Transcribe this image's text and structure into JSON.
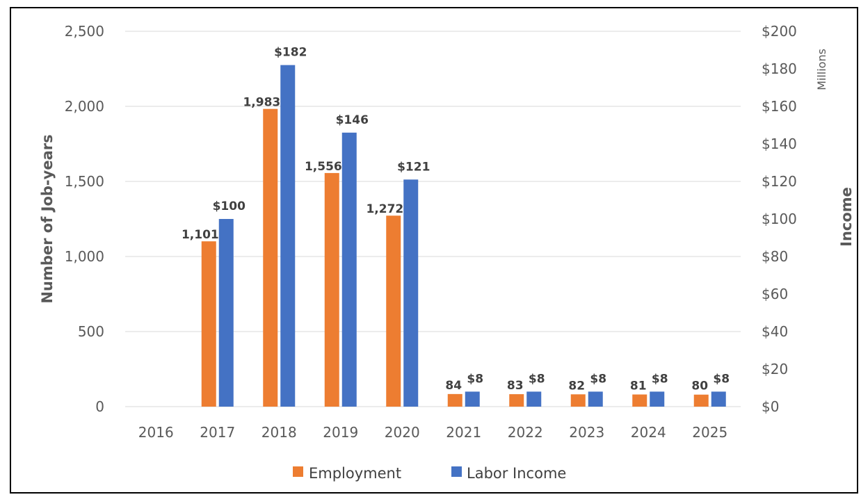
{
  "chart_data": {
    "type": "bar",
    "title": "",
    "xlabel": "",
    "ylabel": "Number of Job-years",
    "y2label": "Income",
    "y2unit": "Millions",
    "categories": [
      "2016",
      "2017",
      "2018",
      "2019",
      "2020",
      "2021",
      "2022",
      "2023",
      "2024",
      "2025"
    ],
    "ylim": [
      0,
      2500
    ],
    "y2lim": [
      0,
      200
    ],
    "yticks": [
      "0",
      "500",
      "1,000",
      "1,500",
      "2,000",
      "2,500"
    ],
    "y2ticks": [
      "$0",
      "$20",
      "$40",
      "$60",
      "$80",
      "$100",
      "$120",
      "$140",
      "$160",
      "$180",
      "$200"
    ],
    "grid": true,
    "legend_position": "bottom",
    "series": [
      {
        "name": "Employment",
        "axis": "left",
        "color": "#ED7D31",
        "values": [
          null,
          1101,
          1983,
          1556,
          1272,
          84,
          83,
          82,
          81,
          80
        ],
        "labels": [
          "",
          "1,101",
          "1,983",
          "1,556",
          "1,272",
          "84",
          "83",
          "82",
          "81",
          "80"
        ]
      },
      {
        "name": "Labor Income",
        "axis": "right",
        "color": "#4472C4",
        "values": [
          null,
          100,
          182,
          146,
          121,
          8,
          8,
          8,
          8,
          8
        ],
        "labels": [
          "",
          "$100",
          "$182",
          "$146",
          "$121",
          "$8",
          "$8",
          "$8",
          "$8",
          "$8"
        ]
      }
    ]
  }
}
